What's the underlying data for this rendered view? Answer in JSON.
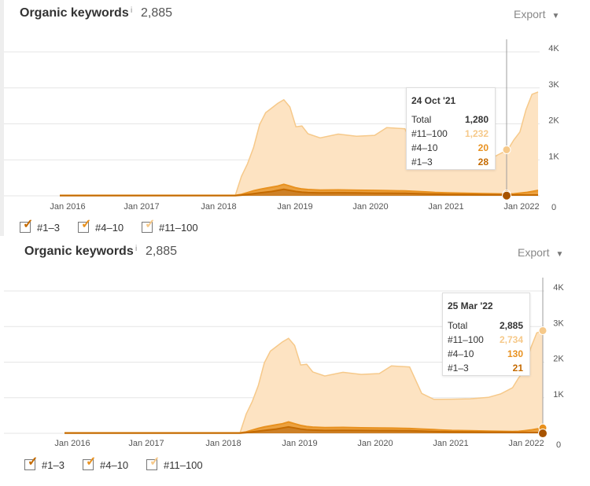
{
  "panels": [
    {
      "title": "Organic keywords",
      "info_icon": "i",
      "count": "2,885",
      "export_label": "Export",
      "tooltip": {
        "date": "24 Oct '21",
        "rows": [
          {
            "label": "Total",
            "value": "1,280"
          },
          {
            "label": "#11–100",
            "value": "1,232"
          },
          {
            "label": "#4–10",
            "value": "20"
          },
          {
            "label": "#1–3",
            "value": "28"
          }
        ]
      },
      "legend": [
        {
          "label": "#1–3"
        },
        {
          "label": "#4–10"
        },
        {
          "label": "#11–100"
        }
      ]
    },
    {
      "title": "Organic keywords",
      "info_icon": "i",
      "count": "2,885",
      "export_label": "Export",
      "tooltip": {
        "date": "25 Mar '22",
        "rows": [
          {
            "label": "Total",
            "value": "2,885"
          },
          {
            "label": "#11–100",
            "value": "2,734"
          },
          {
            "label": "#4–10",
            "value": "130"
          },
          {
            "label": "#1–3",
            "value": "21"
          }
        ]
      },
      "legend": [
        {
          "label": "#1–3"
        },
        {
          "label": "#4–10"
        },
        {
          "label": "#11–100"
        }
      ]
    }
  ],
  "colors": {
    "top3": "#c46a00",
    "top10": "#e8911f",
    "top100": "#f6c98a",
    "top100_fill": "#fde3c2",
    "grid": "#e6e6e6",
    "crosshair": "#9e9e9e"
  },
  "chart_data": [
    {
      "type": "area",
      "stacked": true,
      "x_labels": [
        "Jan 2016",
        "Jan 2017",
        "Jan 2018",
        "Jan 2019",
        "Jan 2020",
        "Jan 2021",
        "Jan 2022"
      ],
      "y_tick_labels": [
        "0",
        "1K",
        "2K",
        "3K",
        "4K"
      ],
      "ylim": [
        0,
        4000
      ],
      "x": [
        "2015-08",
        "2016-06",
        "2017-06",
        "2018-01",
        "2018-02",
        "2018-03",
        "2018-04",
        "2018-05",
        "2018-06",
        "2018-07",
        "2018-08",
        "2018-09",
        "2018-10",
        "2018-11",
        "2018-12",
        "2019-01",
        "2019-03",
        "2019-06",
        "2019-09",
        "2019-12",
        "2020-02",
        "2020-05",
        "2020-07",
        "2020-09",
        "2020-10",
        "2020-12",
        "2021-03",
        "2021-06",
        "2021-08",
        "2021-10",
        "2021-11",
        "2021-12",
        "2022-01",
        "2022-02",
        "2022-03"
      ],
      "series": [
        {
          "name": "#1–3",
          "values": [
            5,
            5,
            5,
            5,
            20,
            40,
            60,
            80,
            100,
            120,
            150,
            180,
            150,
            120,
            100,
            90,
            80,
            85,
            80,
            75,
            75,
            70,
            60,
            50,
            45,
            40,
            35,
            30,
            30,
            28,
            25,
            24,
            22,
            21,
            21
          ]
        },
        {
          "name": "#4–10",
          "values": [
            5,
            5,
            5,
            5,
            20,
            50,
            80,
            100,
            110,
            120,
            120,
            140,
            120,
            100,
            90,
            85,
            80,
            80,
            75,
            75,
            70,
            65,
            60,
            55,
            50,
            40,
            35,
            30,
            25,
            20,
            30,
            50,
            70,
            100,
            130
          ]
        },
        {
          "name": "#11–100",
          "values": [
            10,
            10,
            10,
            10,
            500,
            800,
            1200,
            1800,
            2100,
            2200,
            2300,
            2350,
            2200,
            1700,
            1750,
            1550,
            1450,
            1550,
            1500,
            1530,
            1750,
            1730,
            1000,
            850,
            860,
            880,
            900,
            950,
            1050,
            1232,
            1500,
            1700,
            2300,
            2700,
            2734
          ]
        }
      ],
      "total_max": 2885
    }
  ]
}
